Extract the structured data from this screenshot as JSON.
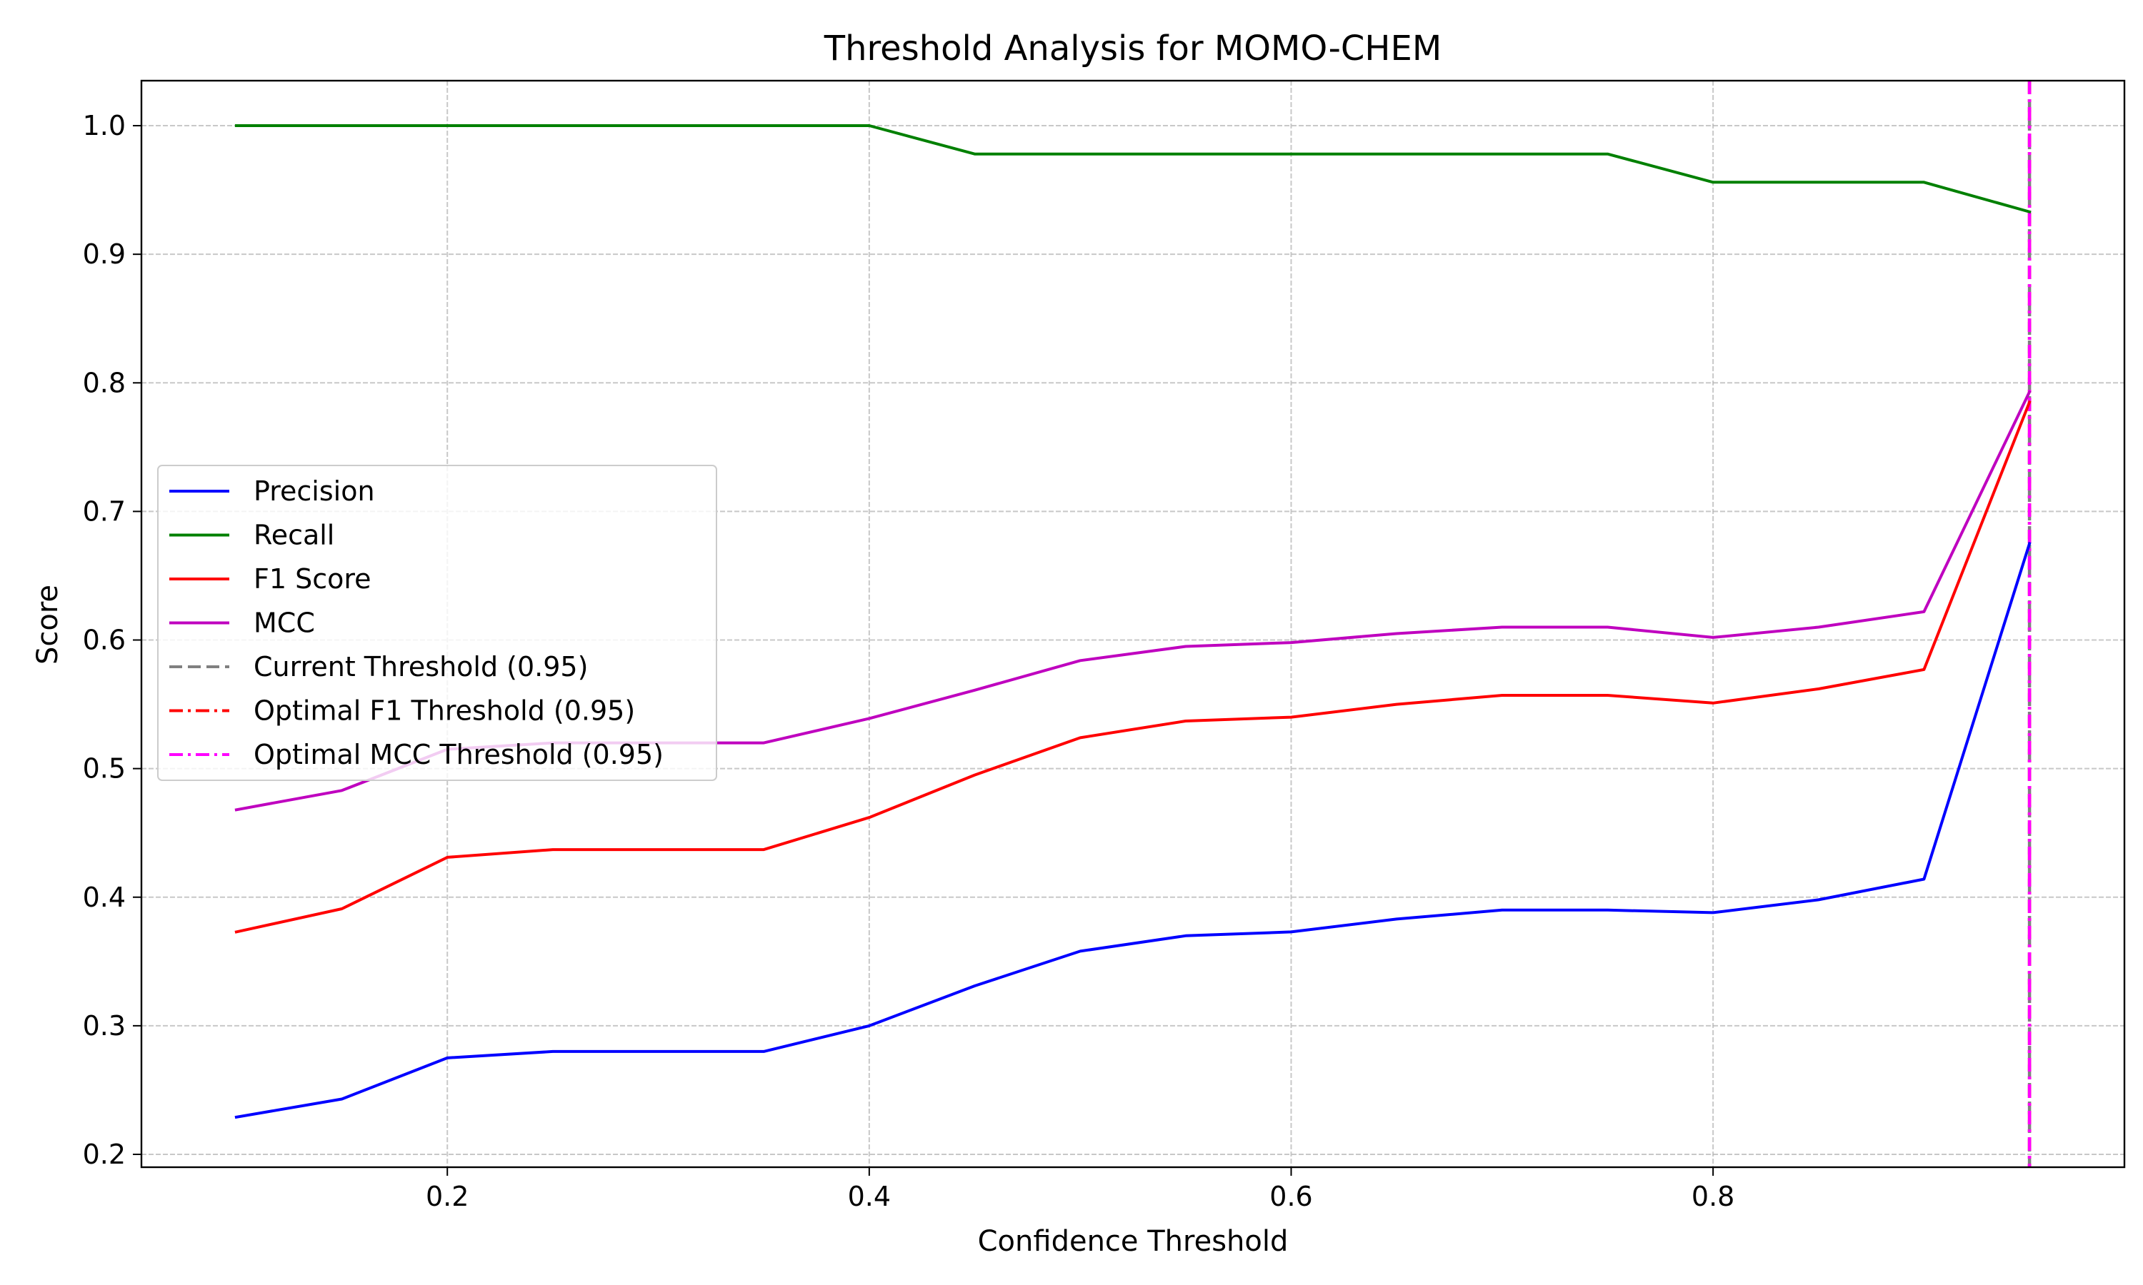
{
  "chart_data": {
    "type": "line",
    "title": "Threshold Analysis for MOMO-CHEM",
    "xlabel": "Confidence Threshold",
    "ylabel": "Score",
    "xlim": [
      0.055,
      0.995
    ],
    "ylim": [
      0.19,
      1.035
    ],
    "xticks": [
      0.2,
      0.4,
      0.6,
      0.8
    ],
    "xtick_labels": [
      "0.2",
      "0.4",
      "0.6",
      "0.8"
    ],
    "yticks": [
      0.2,
      0.3,
      0.4,
      0.5,
      0.6,
      0.7,
      0.8,
      0.9,
      1.0
    ],
    "ytick_labels": [
      "0.2",
      "0.3",
      "0.4",
      "0.5",
      "0.6",
      "0.7",
      "0.8",
      "0.9",
      "1.0"
    ],
    "grid": true,
    "legend_position": "center-left",
    "x": [
      0.1,
      0.15,
      0.2,
      0.25,
      0.3,
      0.35,
      0.4,
      0.45,
      0.5,
      0.55,
      0.6,
      0.65,
      0.7,
      0.75,
      0.8,
      0.85,
      0.9,
      0.95
    ],
    "series": [
      {
        "name": "Precision",
        "color": "#0000ff",
        "values": [
          0.229,
          0.243,
          0.275,
          0.28,
          0.28,
          0.28,
          0.3,
          0.331,
          0.358,
          0.37,
          0.373,
          0.383,
          0.39,
          0.39,
          0.388,
          0.398,
          0.414,
          0.675
        ]
      },
      {
        "name": "Recall",
        "color": "#008000",
        "values": [
          1.0,
          1.0,
          1.0,
          1.0,
          1.0,
          1.0,
          1.0,
          0.978,
          0.978,
          0.978,
          0.978,
          0.978,
          0.978,
          0.978,
          0.956,
          0.956,
          0.956,
          0.933
        ]
      },
      {
        "name": "F1 Score",
        "color": "#ff0000",
        "values": [
          0.373,
          0.391,
          0.431,
          0.437,
          0.437,
          0.437,
          0.462,
          0.495,
          0.524,
          0.537,
          0.54,
          0.55,
          0.557,
          0.557,
          0.551,
          0.562,
          0.577,
          0.785
        ]
      },
      {
        "name": "MCC",
        "color": "#bf00bf",
        "values": [
          0.468,
          0.483,
          0.515,
          0.52,
          0.52,
          0.52,
          0.539,
          0.561,
          0.584,
          0.595,
          0.598,
          0.605,
          0.61,
          0.61,
          0.602,
          0.61,
          0.622,
          0.793
        ]
      }
    ],
    "vlines": [
      {
        "name": "Current Threshold (0.95)",
        "x": 0.95,
        "color": "#808080",
        "style": "dashed"
      },
      {
        "name": "Optimal F1 Threshold (0.95)",
        "x": 0.95,
        "color": "#ff0000",
        "style": "dashdot"
      },
      {
        "name": "Optimal MCC Threshold (0.95)",
        "x": 0.95,
        "color": "#ff00ff",
        "style": "dashdot"
      }
    ]
  }
}
